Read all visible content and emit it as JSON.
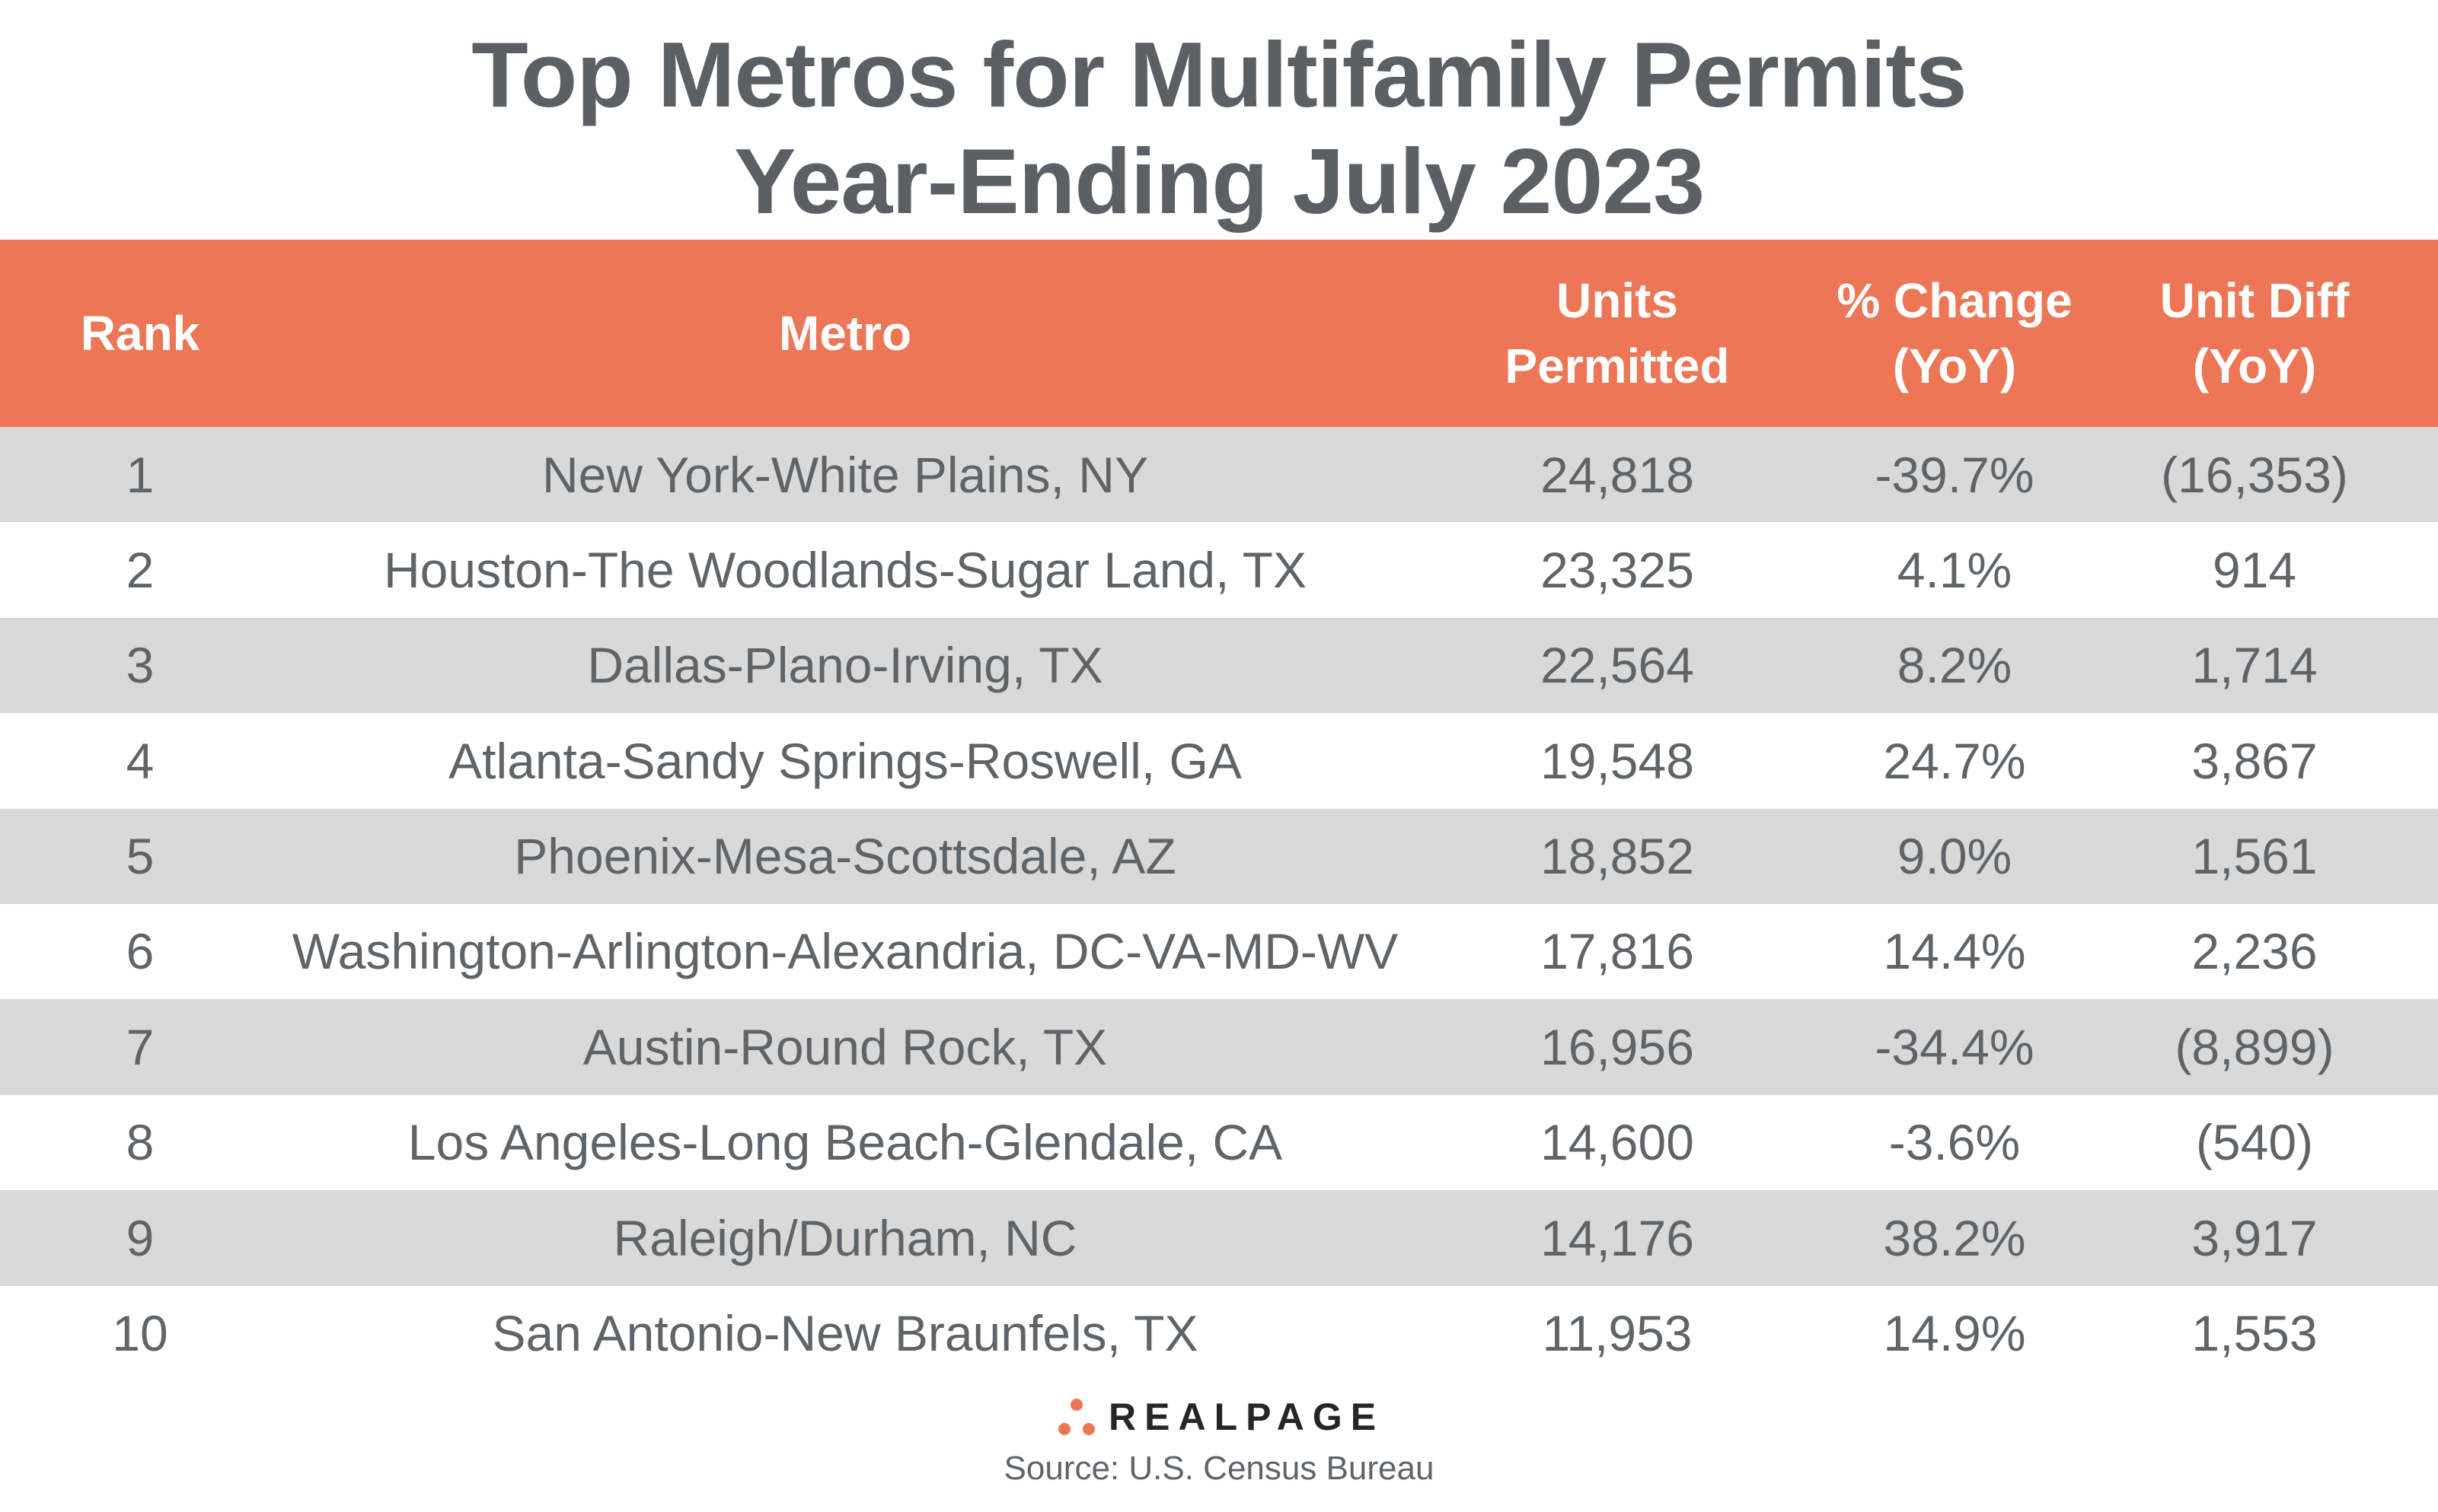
{
  "title_line1": "Top Metros for Multifamily Permits",
  "title_line2": "Year-Ending July 2023",
  "colors": {
    "header_bg": "#EC7655",
    "stripe": "#D9D9D9",
    "text": "#5f6469"
  },
  "columns": [
    "Rank",
    "Metro",
    "Units\nPermitted",
    "% Change\n(YoY)",
    "Unit Diff\n(YoY)"
  ],
  "rows": [
    [
      "1",
      "New York-White Plains, NY",
      "24,818",
      "-39.7%",
      "(16,353)"
    ],
    [
      "2",
      "Houston-The Woodlands-Sugar Land, TX",
      "23,325",
      "4.1%",
      "914"
    ],
    [
      "3",
      "Dallas-Plano-Irving, TX",
      "22,564",
      "8.2%",
      "1,714"
    ],
    [
      "4",
      "Atlanta-Sandy Springs-Roswell, GA",
      "19,548",
      "24.7%",
      "3,867"
    ],
    [
      "5",
      "Phoenix-Mesa-Scottsdale, AZ",
      "18,852",
      "9.0%",
      "1,561"
    ],
    [
      "6",
      "Washington-Arlington-Alexandria, DC-VA-MD-WV",
      "17,816",
      "14.4%",
      "2,236"
    ],
    [
      "7",
      "Austin-Round Rock, TX",
      "16,956",
      "-34.4%",
      "(8,899)"
    ],
    [
      "8",
      "Los Angeles-Long Beach-Glendale, CA",
      "14,600",
      "-3.6%",
      "(540)"
    ],
    [
      "9",
      "Raleigh/Durham, NC",
      "14,176",
      "38.2%",
      "3,917"
    ],
    [
      "10",
      "San Antonio-New Braunfels, TX",
      "11,953",
      "14.9%",
      "1,553"
    ]
  ],
  "logo_text": "REALPAGE",
  "source": "Source: U.S. Census Bureau"
}
